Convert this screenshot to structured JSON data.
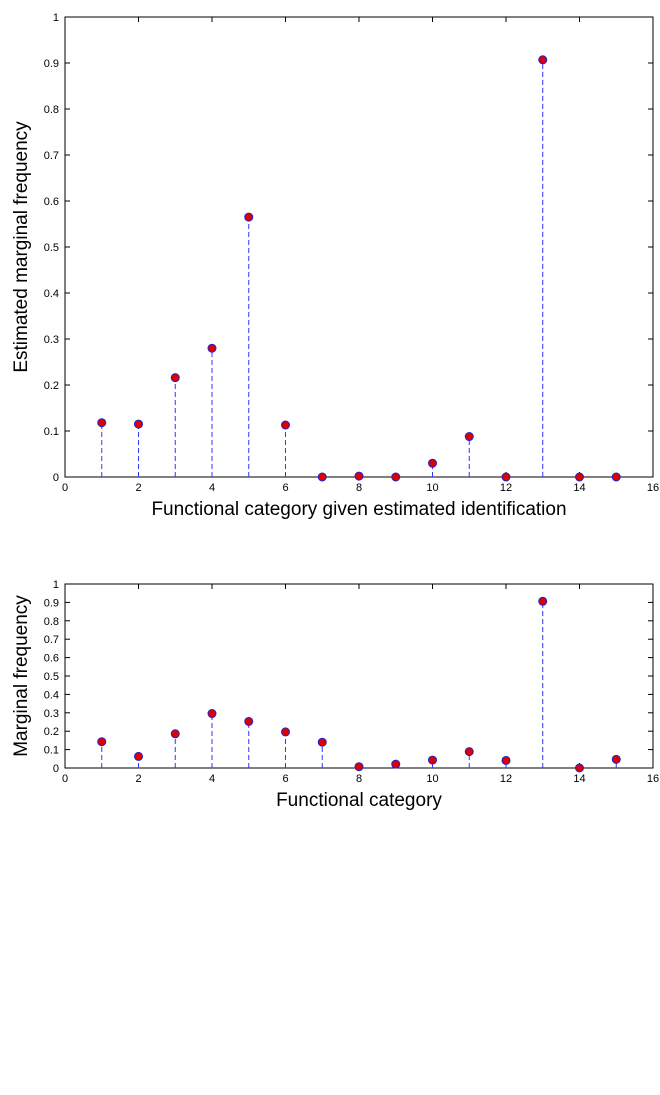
{
  "chart_data": [
    {
      "type": "stem",
      "title": "",
      "xlabel": "Functional category given estimated identification",
      "ylabel": "Estimated marginal frequency",
      "xlim": [
        0,
        16
      ],
      "ylim": [
        0,
        1
      ],
      "xticks": [
        0,
        2,
        4,
        6,
        8,
        10,
        12,
        14,
        16
      ],
      "yticks": [
        0,
        0.1,
        0.2,
        0.3,
        0.4,
        0.5,
        0.6,
        0.7,
        0.8,
        0.9,
        1
      ],
      "grid": false,
      "stem_color": "#3333ff",
      "marker_color": "#dd0000",
      "x": [
        1,
        2,
        3,
        4,
        5,
        6,
        7,
        8,
        9,
        10,
        11,
        12,
        13,
        14,
        15
      ],
      "values": [
        0.118,
        0.115,
        0.216,
        0.28,
        0.565,
        0.113,
        0.0,
        0.002,
        0.0,
        0.03,
        0.088,
        0.0,
        0.907,
        0.0,
        0.0
      ]
    },
    {
      "type": "stem",
      "title": "",
      "xlabel": "Functional category",
      "ylabel": "Marginal frequency",
      "xlim": [
        0,
        16
      ],
      "ylim": [
        0,
        1
      ],
      "xticks": [
        0,
        2,
        4,
        6,
        8,
        10,
        12,
        14,
        16
      ],
      "yticks": [
        0,
        0.1,
        0.2,
        0.3,
        0.4,
        0.5,
        0.6,
        0.7,
        0.8,
        0.9,
        1
      ],
      "grid": false,
      "stem_color": "#3333ff",
      "marker_color": "#dd0000",
      "x": [
        1,
        2,
        3,
        4,
        5,
        6,
        7,
        8,
        9,
        10,
        11,
        12,
        13,
        14,
        15
      ],
      "values": [
        0.143,
        0.063,
        0.186,
        0.296,
        0.253,
        0.196,
        0.14,
        0.007,
        0.021,
        0.043,
        0.089,
        0.041,
        0.906,
        0.0,
        0.047
      ]
    }
  ]
}
